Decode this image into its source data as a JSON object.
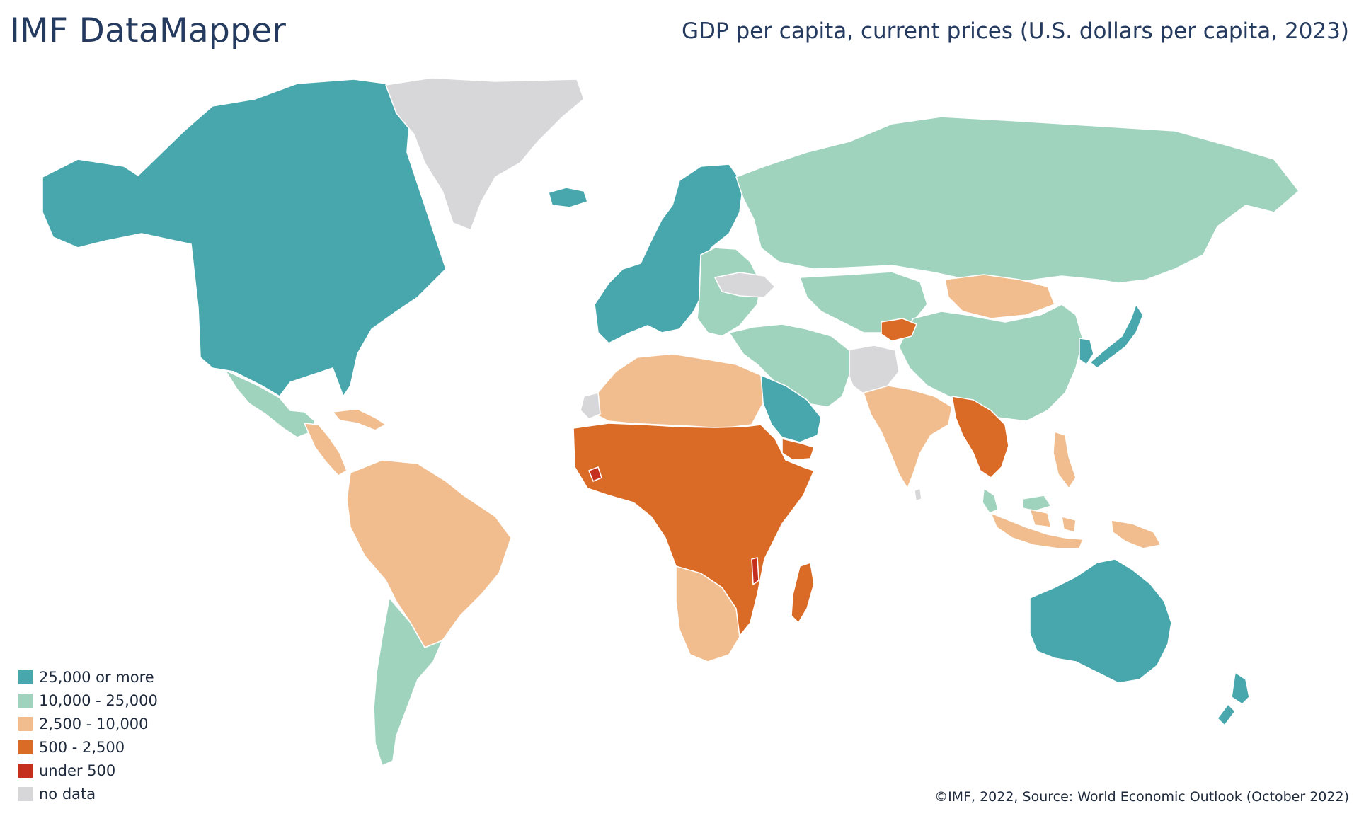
{
  "brand": "IMF DataMapper",
  "title": "GDP per capita, current prices (U.S. dollars per capita, 2023)",
  "source": "©IMF, 2022, Source: World Economic Outlook (October 2022)",
  "colors": {
    "high": "#48a7ad",
    "upper_mid": "#9fd3bd",
    "lower_mid": "#f2bd8e",
    "low": "#da6b27",
    "very_low": "#c4301d",
    "no_data": "#d7d7da"
  },
  "legend": [
    {
      "label": "25,000 or more",
      "class": "high",
      "color": "#48a7ad"
    },
    {
      "label": "10,000 - 25,000",
      "class": "upper_mid",
      "color": "#9fd3bd"
    },
    {
      "label": "2,500 - 10,000",
      "class": "lower_mid",
      "color": "#f2bd8e"
    },
    {
      "label": "500 - 2,500",
      "class": "low",
      "color": "#da6b27"
    },
    {
      "label": "under 500",
      "class": "very_low",
      "color": "#c4301d"
    },
    {
      "label": "no data",
      "class": "no_data",
      "color": "#d7d7da"
    }
  ],
  "regions": [
    {
      "id": "north-america",
      "class": "high"
    },
    {
      "id": "greenland",
      "class": "no_data"
    },
    {
      "id": "mexico",
      "class": "upper_mid"
    },
    {
      "id": "central-america",
      "class": "lower_mid"
    },
    {
      "id": "caribbean",
      "class": "lower_mid"
    },
    {
      "id": "south-america-north",
      "class": "lower_mid"
    },
    {
      "id": "southern-cone",
      "class": "upper_mid"
    },
    {
      "id": "iceland",
      "class": "high"
    },
    {
      "id": "western-europe",
      "class": "high"
    },
    {
      "id": "eastern-europe",
      "class": "upper_mid"
    },
    {
      "id": "ukraine",
      "class": "no_data"
    },
    {
      "id": "russia",
      "class": "upper_mid"
    },
    {
      "id": "central-asia",
      "class": "upper_mid"
    },
    {
      "id": "mongolia",
      "class": "lower_mid"
    },
    {
      "id": "china",
      "class": "upper_mid"
    },
    {
      "id": "japan",
      "class": "high"
    },
    {
      "id": "korea",
      "class": "high"
    },
    {
      "id": "afghanistan-region",
      "class": "no_data"
    },
    {
      "id": "middle-east",
      "class": "upper_mid"
    },
    {
      "id": "saudi-arabia",
      "class": "high"
    },
    {
      "id": "yemen",
      "class": "low"
    },
    {
      "id": "north-africa",
      "class": "lower_mid"
    },
    {
      "id": "western-sahara",
      "class": "no_data"
    },
    {
      "id": "sub-saharan-africa",
      "class": "low"
    },
    {
      "id": "southern-africa",
      "class": "lower_mid"
    },
    {
      "id": "madagascar",
      "class": "low"
    },
    {
      "id": "india",
      "class": "lower_mid"
    },
    {
      "id": "sri-lanka",
      "class": "no_data"
    },
    {
      "id": "mainland-southeast-asia",
      "class": "low"
    },
    {
      "id": "indonesia",
      "class": "lower_mid"
    },
    {
      "id": "philippines",
      "class": "lower_mid"
    },
    {
      "id": "malaysia",
      "class": "upper_mid"
    },
    {
      "id": "papua-new-guinea",
      "class": "lower_mid"
    },
    {
      "id": "australia",
      "class": "high"
    },
    {
      "id": "new-zealand",
      "class": "high"
    },
    {
      "id": "sierra-leone",
      "class": "very_low"
    },
    {
      "id": "malawi",
      "class": "very_low"
    },
    {
      "id": "tajikistan-kyrgyzstan",
      "class": "low"
    }
  ]
}
